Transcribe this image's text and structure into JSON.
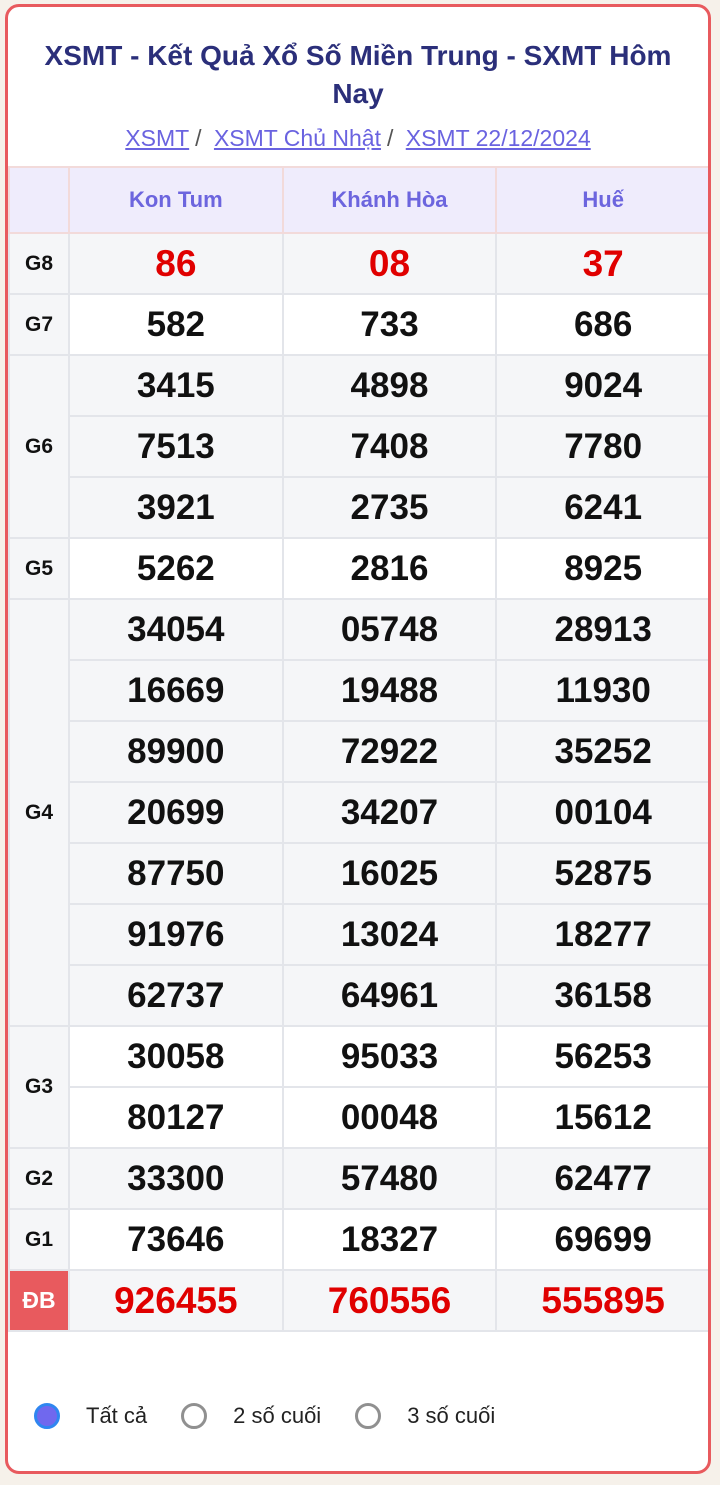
{
  "title": "XSMT - Kết Quả Xổ Số Miền Trung - SXMT Hôm Nay",
  "breadcrumb": [
    "XSMT",
    "XSMT Chủ Nhật",
    "XSMT 22/12/2024"
  ],
  "provinces": [
    "Kon Tum",
    "Khánh Hòa",
    "Huế"
  ],
  "prizes": [
    {
      "label": "G8",
      "rows": [
        [
          "86",
          "08",
          "37"
        ]
      ],
      "highlight": true
    },
    {
      "label": "G7",
      "rows": [
        [
          "582",
          "733",
          "686"
        ]
      ]
    },
    {
      "label": "G6",
      "rows": [
        [
          "3415",
          "4898",
          "9024"
        ],
        [
          "7513",
          "7408",
          "7780"
        ],
        [
          "3921",
          "2735",
          "6241"
        ]
      ]
    },
    {
      "label": "G5",
      "rows": [
        [
          "5262",
          "2816",
          "8925"
        ]
      ]
    },
    {
      "label": "G4",
      "rows": [
        [
          "34054",
          "05748",
          "28913"
        ],
        [
          "16669",
          "19488",
          "11930"
        ],
        [
          "89900",
          "72922",
          "35252"
        ],
        [
          "20699",
          "34207",
          "00104"
        ],
        [
          "87750",
          "16025",
          "52875"
        ],
        [
          "91976",
          "13024",
          "18277"
        ],
        [
          "62737",
          "64961",
          "36158"
        ]
      ]
    },
    {
      "label": "G3",
      "rows": [
        [
          "30058",
          "95033",
          "56253"
        ],
        [
          "80127",
          "00048",
          "15612"
        ]
      ]
    },
    {
      "label": "G2",
      "rows": [
        [
          "33300",
          "57480",
          "62477"
        ]
      ]
    },
    {
      "label": "G1",
      "rows": [
        [
          "73646",
          "18327",
          "69699"
        ]
      ]
    },
    {
      "label": "ĐB",
      "rows": [
        [
          "926455",
          "760556",
          "555895"
        ]
      ],
      "highlight": true,
      "special": true
    }
  ],
  "filters": [
    {
      "label": "Tất cả",
      "selected": true
    },
    {
      "label": "2 số cuối",
      "selected": false
    },
    {
      "label": "3 số cuối",
      "selected": false
    }
  ],
  "colors": {
    "accent": "#6c65de",
    "title": "#2b2f7a",
    "highlight": "#e00000",
    "special_bg": "#e85a5e"
  }
}
